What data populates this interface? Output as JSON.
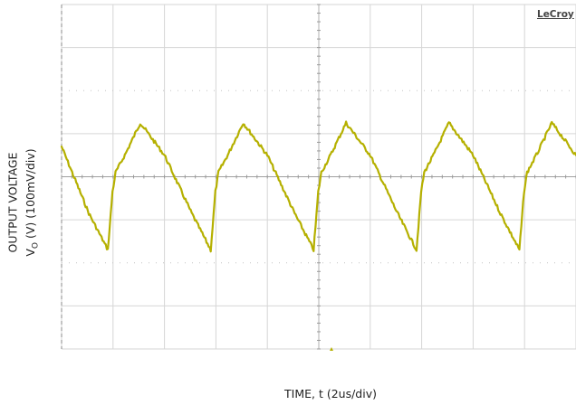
{
  "chart_data": {
    "type": "line",
    "title": "",
    "xlabel": "TIME, t (2us/div)",
    "ylabel_line1": "OUTPUT VOLTAGE",
    "ylabel_prefix": "V",
    "ylabel_subscript": "O",
    "ylabel_suffix": " (V) (100mV/div)",
    "brand": "LeCroy",
    "x_unit": "us",
    "y_unit": "mV",
    "x_divisions": 10,
    "y_divisions": 8,
    "x_per_div": 2,
    "y_per_div": 100,
    "xlim": [
      0,
      20
    ],
    "ylim": [
      -400,
      400
    ],
    "grid": true,
    "trace_color": "#b5b000",
    "series": [
      {
        "x": [
          0.0,
          1.06,
          1.8,
          1.98,
          2.1,
          2.5,
          3.06,
          4.0,
          5.06,
          5.8,
          5.98,
          6.1,
          6.5,
          7.06,
          8.0,
          9.06,
          9.8,
          9.98,
          10.1,
          10.5,
          11.06,
          12.0,
          13.06,
          13.8,
          13.98,
          14.1,
          14.5,
          15.06,
          16.0,
          17.06,
          17.8,
          17.98,
          18.1,
          18.5,
          19.06,
          20.0
        ],
        "y": [
          70,
          -85,
          -170,
          -35,
          10,
          55,
          125,
          50,
          -85,
          -170,
          -35,
          10,
          55,
          125,
          50,
          -85,
          -170,
          -35,
          10,
          55,
          125,
          50,
          -85,
          -170,
          -35,
          10,
          55,
          125,
          50,
          -85,
          -170,
          -35,
          10,
          55,
          125,
          50
        ]
      }
    ]
  }
}
